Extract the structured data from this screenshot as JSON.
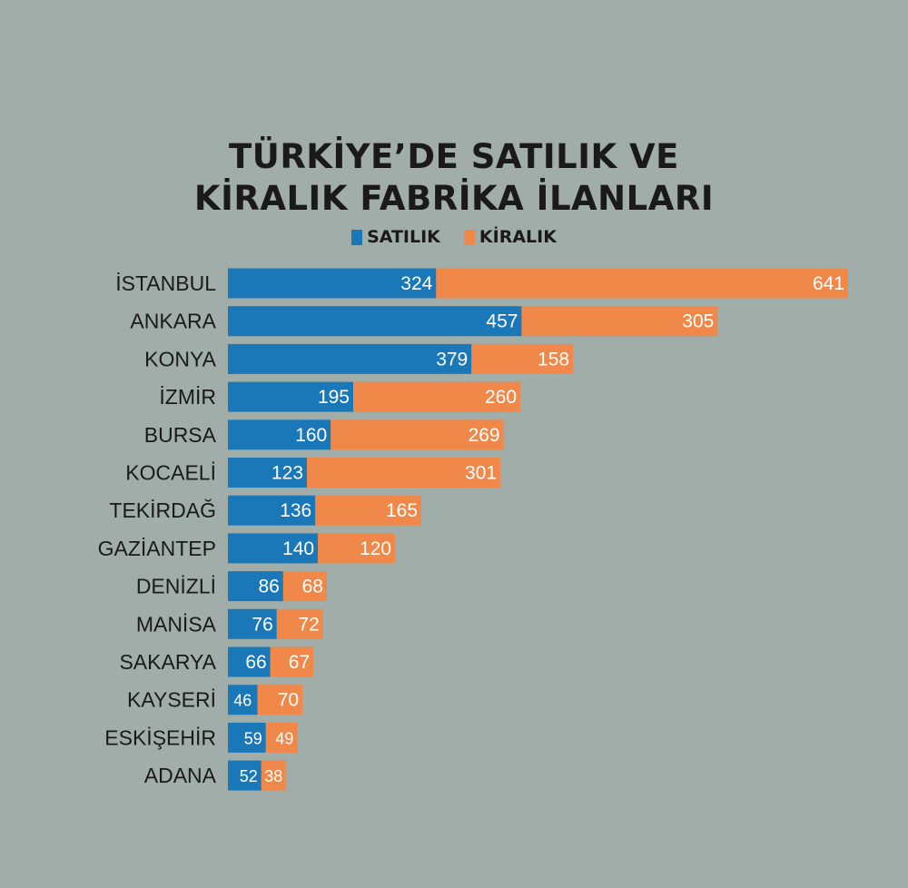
{
  "chart_data": {
    "type": "bar",
    "orientation": "horizontal",
    "stacked": true,
    "title_lines": [
      "TÜRKİYE’DE SATILIK VE",
      "KİRALIK FABRİKA İLANLARI"
    ],
    "categories": [
      "İSTANBUL",
      "ANKARA",
      "KONYA",
      "İZMİR",
      "BURSA",
      "KOCAELİ",
      "TEKİRDAĞ",
      "GAZİANTEP",
      "DENİZLİ",
      "MANİSA",
      "SAKARYA",
      "KAYSERİ",
      "ESKİŞEHİR",
      "ADANA"
    ],
    "series": [
      {
        "name": "SATILIK",
        "color": "#1b78b8",
        "values": [
          324,
          457,
          379,
          195,
          160,
          123,
          136,
          140,
          86,
          76,
          66,
          46,
          59,
          52
        ]
      },
      {
        "name": "KİRALIK",
        "color": "#f0884a",
        "values": [
          641,
          305,
          158,
          260,
          269,
          301,
          165,
          120,
          68,
          72,
          67,
          70,
          49,
          38
        ]
      }
    ],
    "xlim": [
      0,
      965
    ],
    "legend_position": "top-center",
    "grid": false
  }
}
